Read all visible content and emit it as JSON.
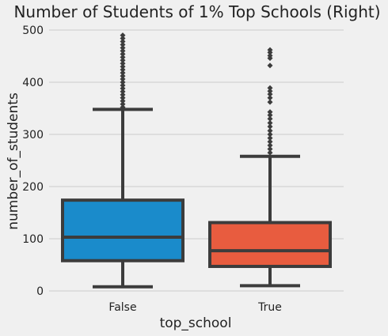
{
  "chart_data": {
    "type": "boxplot",
    "title": "Number of Students of 1% Top Schools (Right)",
    "xlabel": "top_school",
    "ylabel": "number_of_students",
    "ylim": [
      0,
      500
    ],
    "yticks": [
      0,
      100,
      200,
      300,
      400,
      500
    ],
    "grid": "y",
    "legend": "none",
    "categories": [
      "False",
      "True"
    ],
    "boxes": [
      {
        "category": "False",
        "color": "#1a8bcb",
        "whisker_low": 8,
        "q1": 58,
        "median": 103,
        "q3": 174,
        "whisker_high": 348,
        "outliers": [
          352,
          358,
          364,
          370,
          376,
          382,
          388,
          394,
          400,
          406,
          412,
          418,
          424,
          430,
          436,
          442,
          448,
          454,
          460,
          466,
          472,
          478,
          484,
          490
        ]
      },
      {
        "category": "True",
        "color": "#e85c3f",
        "whisker_low": 10,
        "q1": 47,
        "median": 77,
        "q3": 131,
        "whisker_high": 258,
        "outliers": [
          265,
          272,
          279,
          286,
          293,
          300,
          307,
          315,
          322,
          330,
          337,
          343,
          362,
          370,
          377,
          383,
          389,
          432,
          446,
          451,
          457,
          462
        ]
      }
    ]
  }
}
